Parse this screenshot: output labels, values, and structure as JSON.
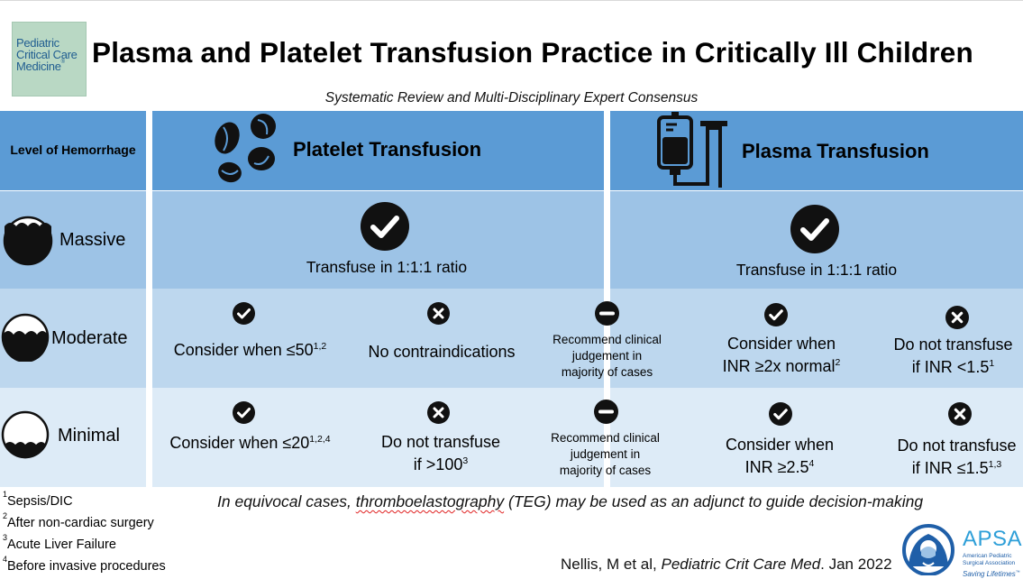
{
  "logo": {
    "line1": "Pediatric",
    "line2": "Critical Care",
    "line3": "Medicine"
  },
  "title": "Plasma and Platelet Transfusion Practice in Critically Ill Children",
  "subtitle": "Systematic Review and Multi-Disciplinary Expert  Consensus",
  "header": {
    "level_label": "Level of Hemorrhage",
    "platelet_title": "Platelet Transfusion",
    "plasma_title": "Plasma Transfusion"
  },
  "rows": {
    "massive": {
      "label": "Massive",
      "platelet": "Transfuse in 1:1:1 ratio",
      "plasma": "Transfuse in 1:1:1 ratio"
    },
    "moderate": {
      "label": "Moderate",
      "platelet_yes": "Consider when ≤50",
      "platelet_yes_sup": "1,2",
      "platelet_no": "No contraindications",
      "mid_line1": "Recommend clinical",
      "mid_line2": "judgement in",
      "mid_line3": "majority of cases",
      "plasma_yes_line1": "Consider when",
      "plasma_yes_line2": "INR ≥2x normal",
      "plasma_yes_sup": "2",
      "plasma_no_line1": "Do not transfuse",
      "plasma_no_line2": "if INR <1.5",
      "plasma_no_sup": "1"
    },
    "minimal": {
      "label": "Minimal",
      "platelet_yes": "Consider when ≤20",
      "platelet_yes_sup": "1,2,4",
      "platelet_no_line1": "Do not transfuse",
      "platelet_no_line2": "if >100",
      "platelet_no_sup": "3",
      "mid_line1": "Recommend clinical",
      "mid_line2": "judgement in",
      "mid_line3": "majority of cases",
      "plasma_yes_line1": "Consider when",
      "plasma_yes_line2": "INR ≥2.5",
      "plasma_yes_sup": "4",
      "plasma_no_line1": "Do not transfuse",
      "plasma_no_line2": "if INR ≤1.5",
      "plasma_no_sup": "1,3"
    }
  },
  "footnotes": [
    {
      "num": "1",
      "text": "Sepsis/DIC"
    },
    {
      "num": "2",
      "text": "After non-cardiac surgery"
    },
    {
      "num": "3",
      "text": "Acute Liver Failure"
    },
    {
      "num": "4",
      "text": "Before invasive procedures"
    }
  ],
  "equivocal": {
    "pre": "In equivocal cases, ",
    "teg": "thromboelastography",
    "post": " (TEG) may be used as an adjunct to guide decision-making"
  },
  "citation": {
    "authors": "Nellis, M et al, ",
    "journal": "Pediatric Crit Care Med",
    "date": ". Jan 2022"
  },
  "apsa": {
    "abbr": "APSA",
    "line1": "American Pediatric",
    "line2": "Surgical Association",
    "tagline": "Saving Lifetimes"
  },
  "colors": {
    "header": "#5b9bd5",
    "row_massive": "#9dc3e6",
    "row_moderate": "#bdd7ee",
    "row_minimal": "#ddebf7",
    "apsa_blue": "#1f5fa8"
  }
}
